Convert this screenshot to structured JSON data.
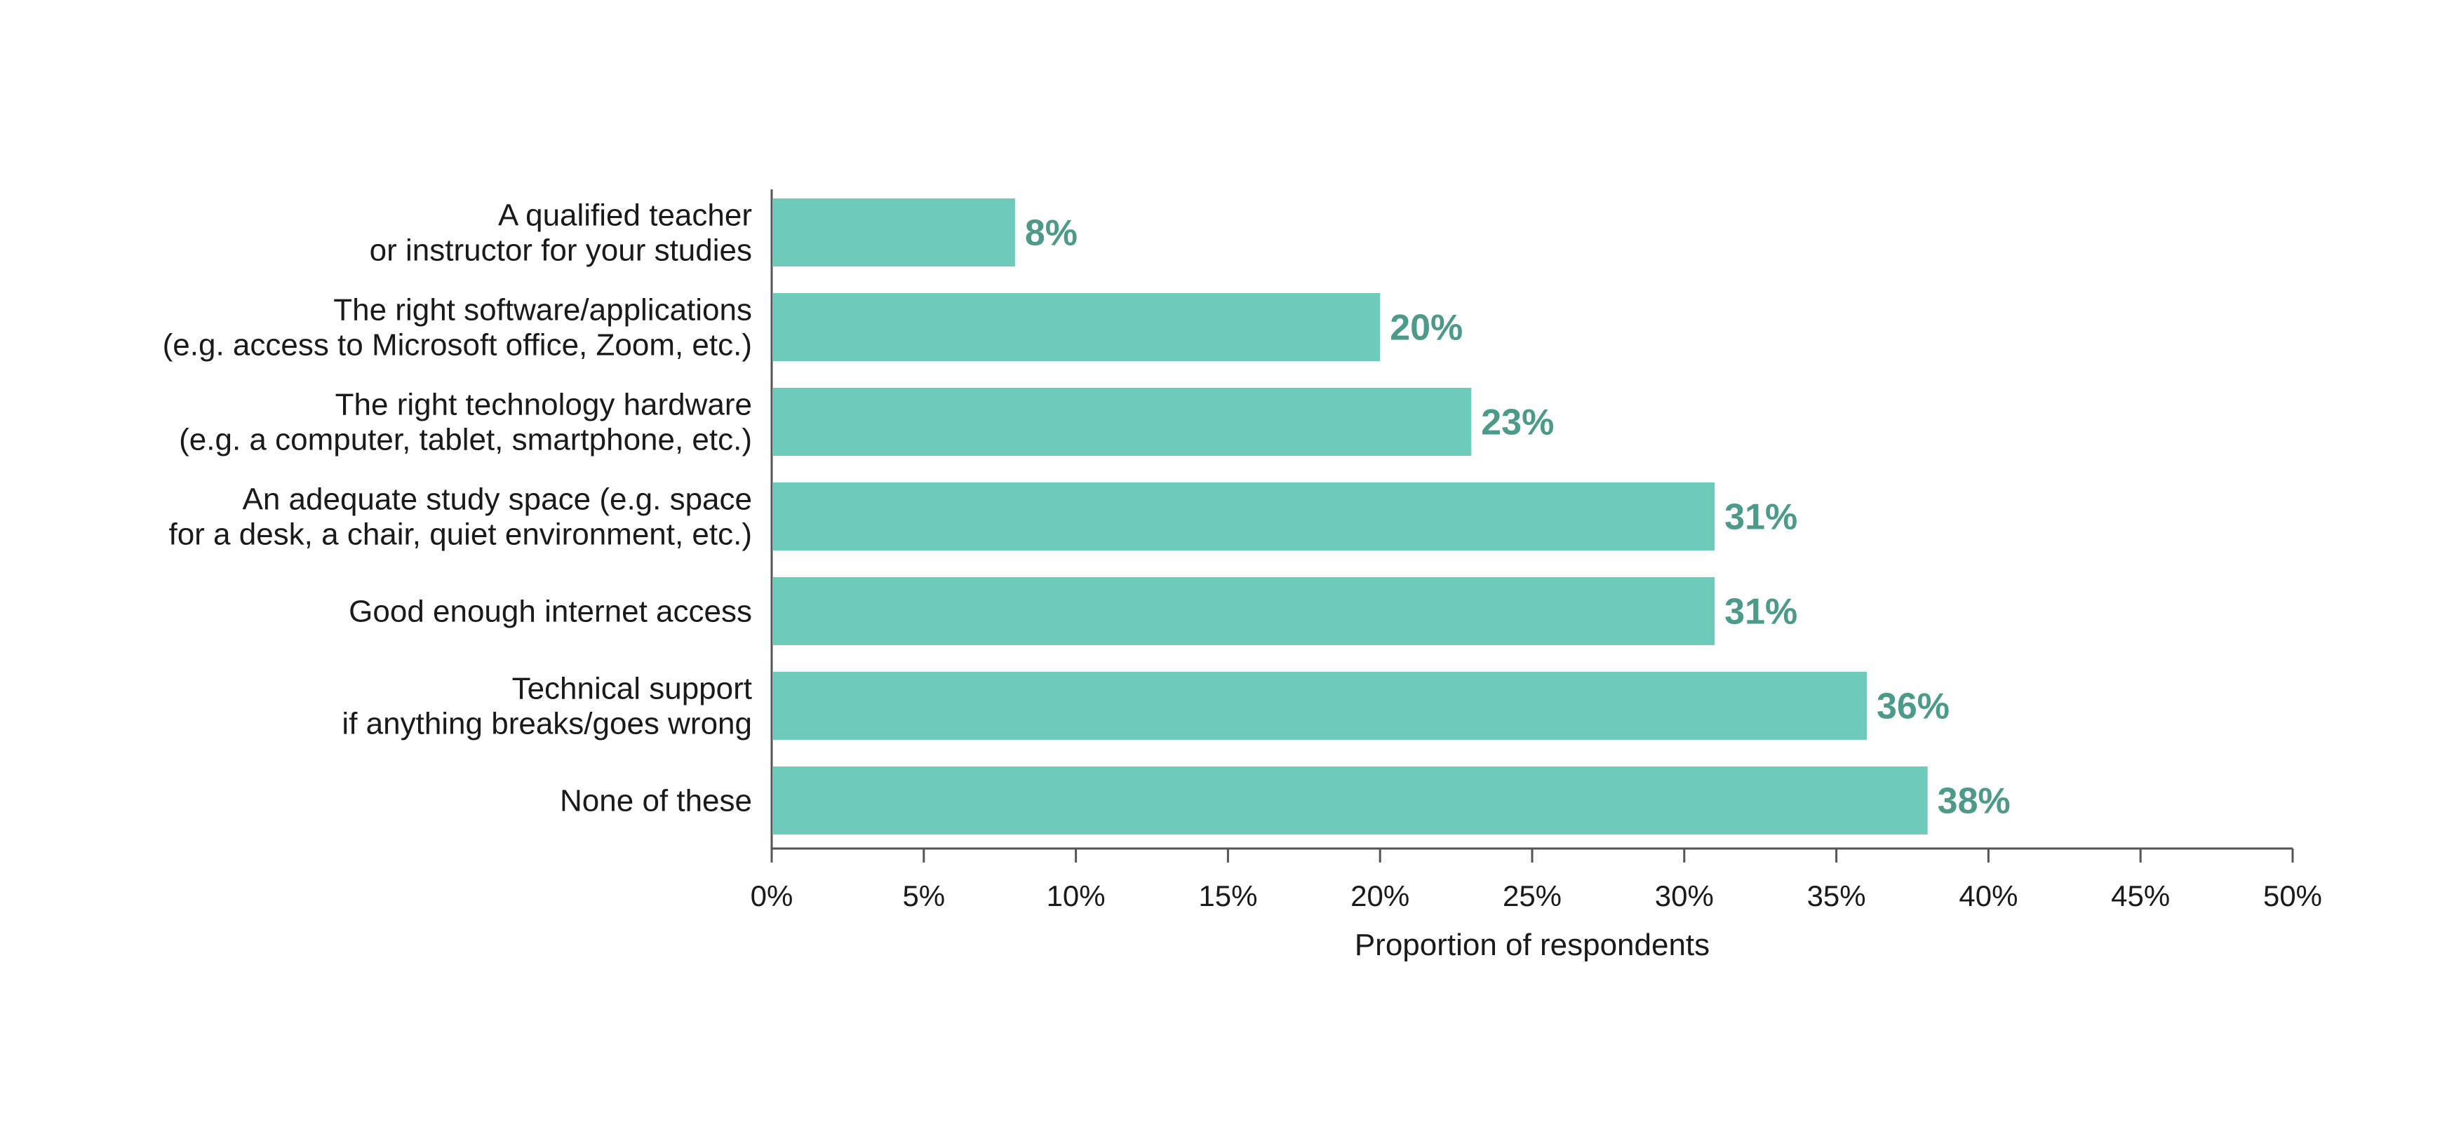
{
  "chart_data": {
    "type": "bar",
    "orientation": "horizontal",
    "categories": [
      [
        "A qualified teacher",
        "or instructor for your studies"
      ],
      [
        "The right software/applications",
        "(e.g. access to Microsoft office, Zoom, etc.)"
      ],
      [
        "The right technology hardware",
        "(e.g. a computer, tablet, smartphone, etc.)"
      ],
      [
        "An adequate study space (e.g. space",
        "for a desk, a chair, quiet environment, etc.)"
      ],
      [
        "Good enough internet access"
      ],
      [
        "Technical support",
        "if anything breaks/goes wrong"
      ],
      [
        "None of these"
      ]
    ],
    "values": [
      8,
      20,
      23,
      31,
      31,
      36,
      38
    ],
    "data_labels": [
      "8%",
      "20%",
      "23%",
      "31%",
      "31%",
      "36%",
      "38%"
    ],
    "xlabel": "Proportion of respondents",
    "xlim": [
      0,
      50
    ],
    "xticks": [
      0,
      5,
      10,
      15,
      20,
      25,
      30,
      35,
      40,
      45,
      50
    ],
    "xtick_labels": [
      "0%",
      "5%",
      "10%",
      "15%",
      "20%",
      "25%",
      "30%",
      "35%",
      "40%",
      "45%",
      "50%"
    ],
    "grid": false,
    "legend": "none",
    "bar_color": "#6ecbba",
    "label_color": "#4c9a8a",
    "axis_color": "#555555"
  }
}
